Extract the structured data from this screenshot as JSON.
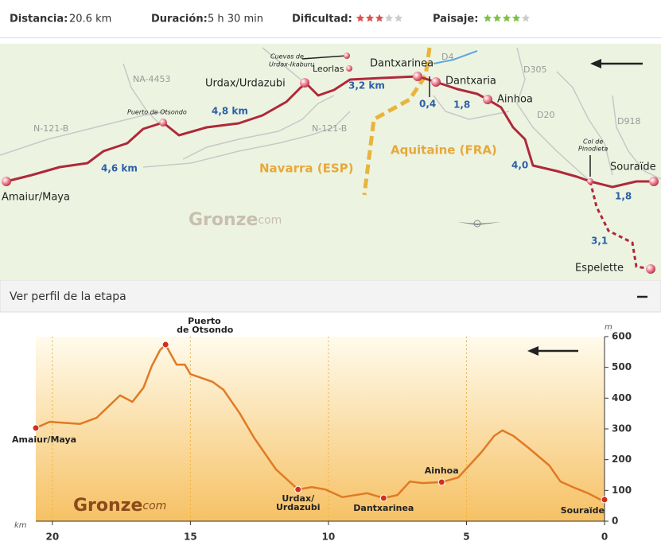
{
  "stats": [
    {
      "label": "Distancia:",
      "value": "20.6 km"
    },
    {
      "label": "Duración:",
      "value": "5 h 30 min"
    },
    {
      "label": "Dificultad:",
      "rating": 3,
      "max": 5,
      "color": "#d9534f"
    },
    {
      "label": "Paisaje:",
      "rating": 4,
      "max": 5,
      "color": "#7cc242"
    }
  ],
  "map": {
    "roads": [
      "NA-4453",
      "N-121-B",
      "N-121-B",
      "D4",
      "D305",
      "D20",
      "D918"
    ],
    "places": [
      "Amaiur/Maya",
      "Urdax/Urdazubi",
      "Dantxarinea",
      "Dantxaria",
      "Ainhoa",
      "Souraïde",
      "Espelette",
      "Leorlas"
    ],
    "small": [
      "Puerto de Otsondo",
      "Cuevas de",
      "Urdax-Ikaburu",
      "Col de",
      "Pinodieta"
    ],
    "distances": [
      "4,6 km",
      "4,8 km",
      "3,2 km",
      "0,4",
      "1,8",
      "4,0",
      "1,8",
      "3,1"
    ],
    "regions": [
      "Aquitaine (FRA)",
      "Navarra (ESP)"
    ],
    "logo": {
      "name": "Gronze",
      "suffix": "com"
    }
  },
  "profile_bar": {
    "title": "Ver perfil de la etapa"
  },
  "chart_data": {
    "type": "line",
    "color": "#e07a24",
    "x": [
      20.6,
      20.1,
      19.0,
      18.4,
      17.55,
      17.1,
      16.7,
      16.4,
      16.1,
      15.9,
      15.5,
      15.2,
      15.0,
      14.2,
      13.8,
      13.2,
      12.7,
      11.9,
      11.1,
      10.6,
      10.1,
      9.5,
      8.6,
      8.0,
      7.5,
      7.05,
      6.6,
      5.9,
      5.3,
      4.45,
      4.0,
      3.7,
      3.3,
      2.75,
      2.0,
      1.6,
      1.15,
      0.6,
      0.15,
      0
    ],
    "values": [
      303,
      323,
      316,
      336,
      409,
      388,
      434,
      504,
      556,
      574,
      509,
      509,
      478,
      453,
      427,
      349,
      272,
      168,
      103,
      111,
      103,
      78,
      91,
      75,
      85,
      129,
      124,
      127,
      142,
      225,
      277,
      295,
      277,
      238,
      181,
      129,
      111,
      91,
      70,
      70
    ],
    "xlim": [
      20.6,
      0
    ],
    "ylim": [
      0,
      600
    ],
    "xticks": [
      20,
      15,
      10,
      5,
      0
    ],
    "yticks": [
      0,
      100,
      200,
      300,
      400,
      500,
      600
    ],
    "x_label": "km",
    "y_label": "m",
    "grid": true,
    "waypoints": [
      {
        "name": [
          "Amaiur/Maya"
        ],
        "km": 20.6,
        "m": 303
      },
      {
        "name": [
          "Puerto",
          "de Otsondo"
        ],
        "km": 15.9,
        "m": 574
      },
      {
        "name": [
          "Urdax/",
          "Urdazubi"
        ],
        "km": 11.1,
        "m": 103
      },
      {
        "name": [
          "Dantxarinea"
        ],
        "km": 8.0,
        "m": 75
      },
      {
        "name": [
          "Ainhoa"
        ],
        "km": 5.9,
        "m": 127
      },
      {
        "name": [
          "Souraïde"
        ],
        "km": 0,
        "m": 70
      }
    ],
    "logo": {
      "name": "Gronze",
      "suffix": "com"
    }
  }
}
